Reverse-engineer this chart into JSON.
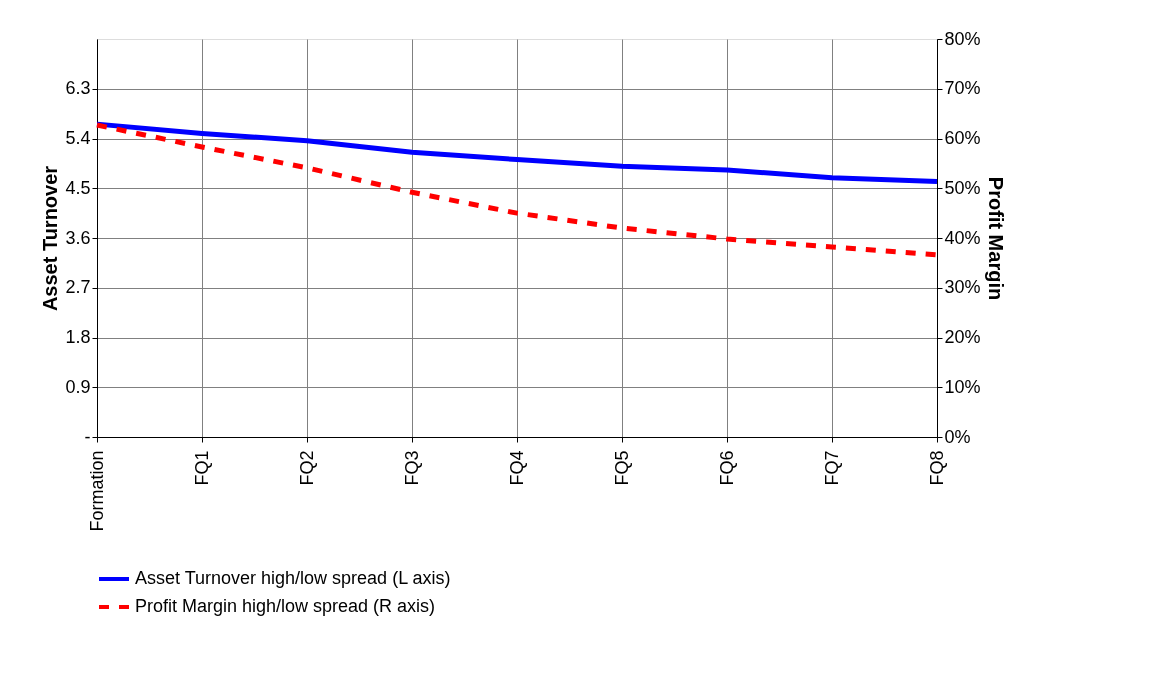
{
  "chart_data": {
    "type": "line",
    "ylabel": "Asset Turnover",
    "y2label": "Profit Margin",
    "categories": [
      "Formation",
      "FQ1",
      "FQ2",
      "FQ3",
      "FQ4",
      "FQ5",
      "FQ6",
      "FQ7",
      "FQ8"
    ],
    "series": [
      {
        "name": "Asset Turnover high/low spread (L axis)",
        "color": "#0000ff",
        "line_style": "solid",
        "axis": "y",
        "values": [
          5.66,
          5.49,
          5.36,
          5.15,
          5.02,
          4.9,
          4.83,
          4.69,
          4.62
        ]
      },
      {
        "name": "Profit Margin high/low spread (R axis)",
        "color": "#ff0000",
        "line_style": "dashed",
        "axis": "y2",
        "values": [
          62.7,
          58.3,
          54.1,
          49.2,
          45.0,
          42.0,
          39.8,
          38.2,
          36.6
        ]
      }
    ],
    "ylim": [
      0,
      7.2
    ],
    "yticks": [
      {
        "value": 0,
        "label": "-"
      },
      0.9,
      1.8,
      2.7,
      3.6,
      4.5,
      5.4,
      6.3
    ],
    "y2lim": [
      0,
      80
    ],
    "y2ticks": [
      {
        "value": 0,
        "label": "0%"
      },
      {
        "value": 10,
        "label": "10%"
      },
      {
        "value": 20,
        "label": "20%"
      },
      {
        "value": 30,
        "label": "30%"
      },
      {
        "value": 40,
        "label": "40%"
      },
      {
        "value": 50,
        "label": "50%"
      },
      {
        "value": 60,
        "label": "60%"
      },
      {
        "value": 70,
        "label": "70%"
      },
      {
        "value": 80,
        "label": "80%"
      }
    ],
    "grid": true,
    "legend": "bottom",
    "marker": "none"
  }
}
